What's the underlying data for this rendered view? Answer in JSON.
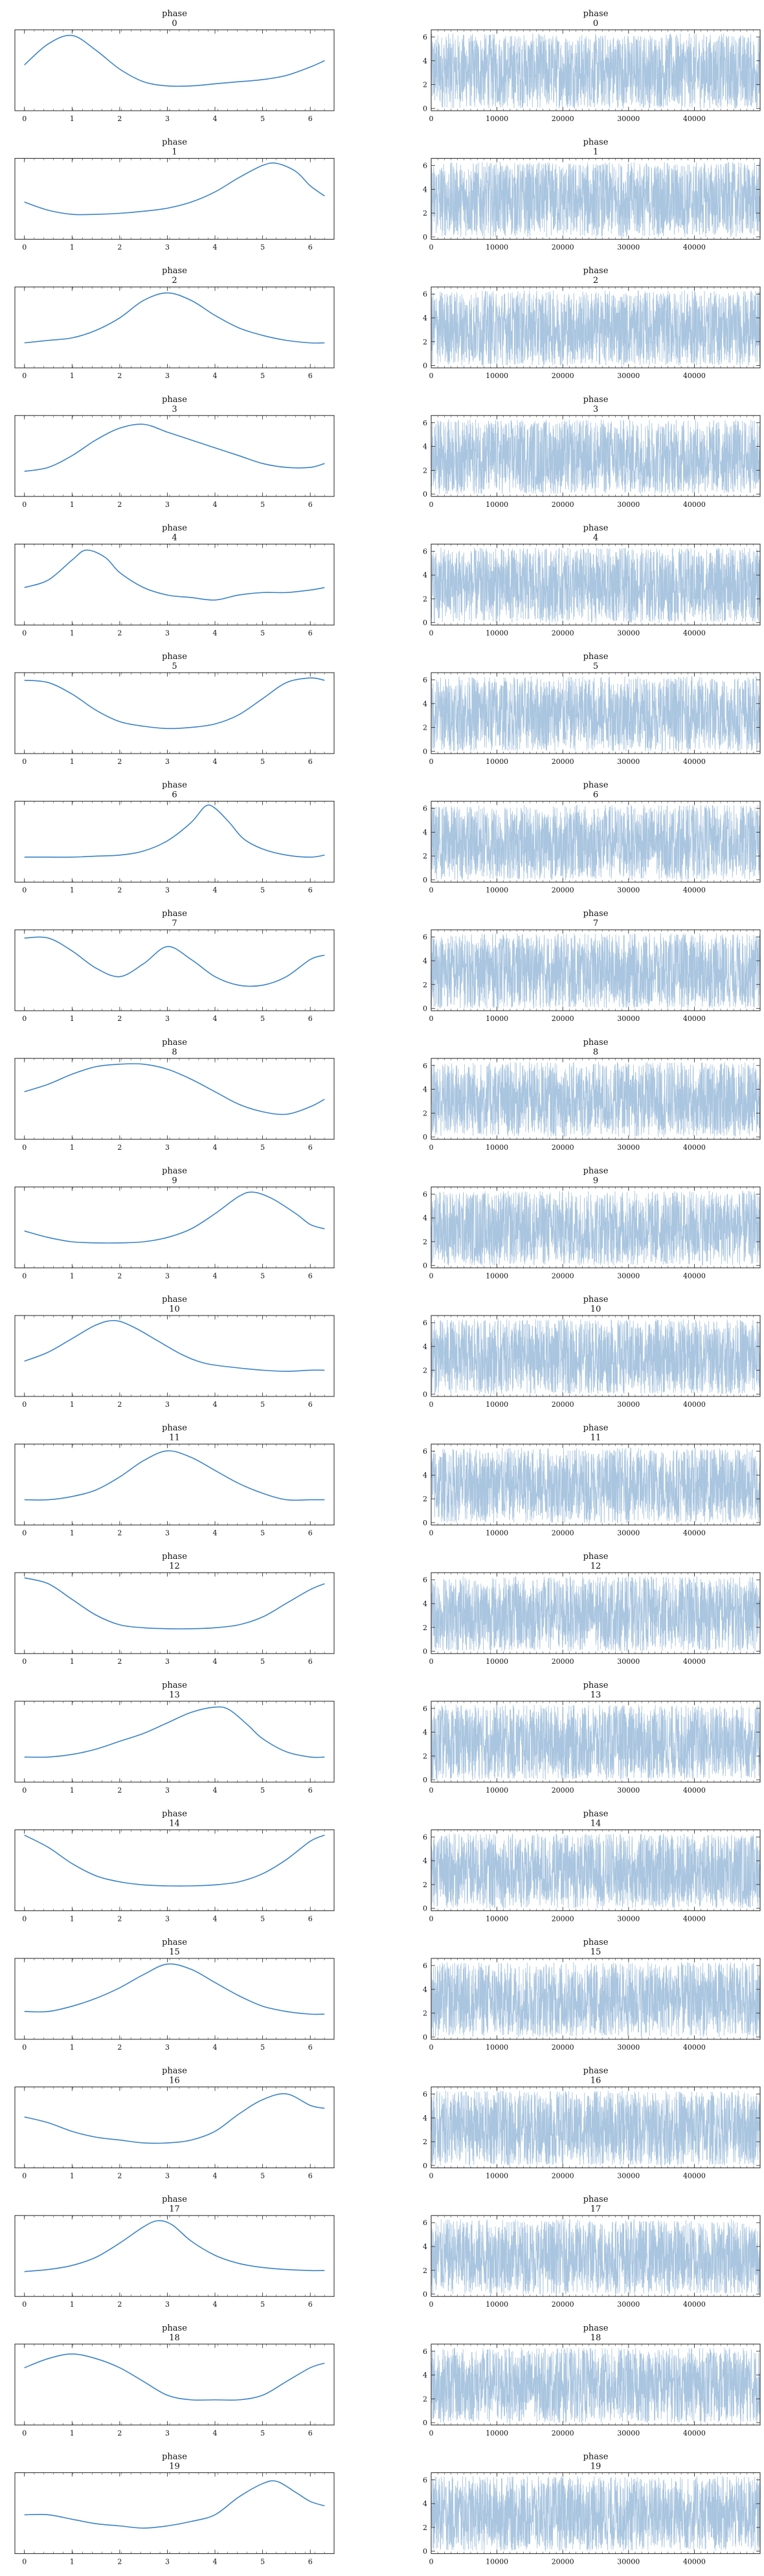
{
  "chart_data": {
    "type": "line",
    "variable": "phase",
    "colors": {
      "kde": "#3b83c7",
      "trace": "#a9c5df"
    },
    "kde_xlim": [
      -0.2,
      6.5
    ],
    "kde_xticks": [
      0,
      1,
      2,
      3,
      4,
      5,
      6
    ],
    "trace_xlim": [
      0,
      50000
    ],
    "trace_xticks": [
      0,
      10000,
      20000,
      30000,
      40000
    ],
    "trace_ylim": [
      -0.2,
      6.6
    ],
    "trace_yticks": [
      0,
      2,
      4,
      6
    ],
    "kde_curves": [
      {
        "index": "0",
        "points": [
          [
            0,
            0.2
          ],
          [
            0.5,
            0.3
          ],
          [
            1.0,
            0.34
          ],
          [
            1.5,
            0.27
          ],
          [
            2.0,
            0.18
          ],
          [
            2.5,
            0.12
          ],
          [
            3.0,
            0.1
          ],
          [
            3.5,
            0.1
          ],
          [
            4.0,
            0.11
          ],
          [
            4.5,
            0.12
          ],
          [
            5.0,
            0.13
          ],
          [
            5.5,
            0.15
          ],
          [
            6.0,
            0.19
          ],
          [
            6.3,
            0.22
          ]
        ]
      },
      {
        "index": "1",
        "points": [
          [
            0,
            0.12
          ],
          [
            0.5,
            0.08
          ],
          [
            1.0,
            0.06
          ],
          [
            1.5,
            0.06
          ],
          [
            2.0,
            0.065
          ],
          [
            2.5,
            0.075
          ],
          [
            3.0,
            0.09
          ],
          [
            3.5,
            0.12
          ],
          [
            4.0,
            0.17
          ],
          [
            4.5,
            0.24
          ],
          [
            5.0,
            0.3
          ],
          [
            5.3,
            0.31
          ],
          [
            5.7,
            0.27
          ],
          [
            6.0,
            0.2
          ],
          [
            6.3,
            0.15
          ]
        ]
      },
      {
        "index": "2",
        "points": [
          [
            0,
            0.1
          ],
          [
            0.5,
            0.11
          ],
          [
            1.0,
            0.12
          ],
          [
            1.5,
            0.15
          ],
          [
            2.0,
            0.2
          ],
          [
            2.5,
            0.27
          ],
          [
            3.0,
            0.3
          ],
          [
            3.5,
            0.27
          ],
          [
            4.0,
            0.21
          ],
          [
            4.5,
            0.16
          ],
          [
            5.0,
            0.13
          ],
          [
            5.5,
            0.11
          ],
          [
            6.0,
            0.1
          ],
          [
            6.3,
            0.1
          ]
        ]
      },
      {
        "index": "3",
        "points": [
          [
            0,
            0.16
          ],
          [
            0.5,
            0.17
          ],
          [
            1.0,
            0.2
          ],
          [
            1.5,
            0.24
          ],
          [
            2.0,
            0.27
          ],
          [
            2.5,
            0.28
          ],
          [
            3.0,
            0.26
          ],
          [
            3.5,
            0.24
          ],
          [
            4.0,
            0.22
          ],
          [
            4.5,
            0.2
          ],
          [
            5.0,
            0.18
          ],
          [
            5.5,
            0.17
          ],
          [
            6.0,
            0.17
          ],
          [
            6.3,
            0.18
          ]
        ]
      },
      {
        "index": "4",
        "points": [
          [
            0,
            0.15
          ],
          [
            0.5,
            0.18
          ],
          [
            1.0,
            0.26
          ],
          [
            1.3,
            0.3
          ],
          [
            1.7,
            0.27
          ],
          [
            2.0,
            0.21
          ],
          [
            2.5,
            0.15
          ],
          [
            3.0,
            0.12
          ],
          [
            3.5,
            0.11
          ],
          [
            4.0,
            0.1
          ],
          [
            4.5,
            0.12
          ],
          [
            5.0,
            0.13
          ],
          [
            5.5,
            0.13
          ],
          [
            6.0,
            0.14
          ],
          [
            6.3,
            0.15
          ]
        ]
      },
      {
        "index": "5",
        "points": [
          [
            0,
            0.28
          ],
          [
            0.5,
            0.27
          ],
          [
            1.0,
            0.22
          ],
          [
            1.5,
            0.15
          ],
          [
            2.0,
            0.1
          ],
          [
            2.5,
            0.08
          ],
          [
            3.0,
            0.07
          ],
          [
            3.5,
            0.075
          ],
          [
            4.0,
            0.09
          ],
          [
            4.5,
            0.13
          ],
          [
            5.0,
            0.2
          ],
          [
            5.5,
            0.27
          ],
          [
            6.0,
            0.29
          ],
          [
            6.3,
            0.28
          ]
        ]
      },
      {
        "index": "6",
        "points": [
          [
            0,
            0.05
          ],
          [
            0.5,
            0.05
          ],
          [
            1.0,
            0.05
          ],
          [
            1.5,
            0.055
          ],
          [
            2.0,
            0.06
          ],
          [
            2.5,
            0.08
          ],
          [
            3.0,
            0.13
          ],
          [
            3.5,
            0.22
          ],
          [
            3.8,
            0.3
          ],
          [
            4.0,
            0.29
          ],
          [
            4.3,
            0.22
          ],
          [
            4.6,
            0.14
          ],
          [
            5.0,
            0.09
          ],
          [
            5.5,
            0.06
          ],
          [
            6.0,
            0.05
          ],
          [
            6.3,
            0.06
          ]
        ]
      },
      {
        "index": "7",
        "points": [
          [
            0,
            0.24
          ],
          [
            0.5,
            0.24
          ],
          [
            1.0,
            0.21
          ],
          [
            1.5,
            0.17
          ],
          [
            2.0,
            0.15
          ],
          [
            2.5,
            0.18
          ],
          [
            3.0,
            0.22
          ],
          [
            3.5,
            0.19
          ],
          [
            4.0,
            0.15
          ],
          [
            4.5,
            0.13
          ],
          [
            5.0,
            0.13
          ],
          [
            5.5,
            0.15
          ],
          [
            6.0,
            0.19
          ],
          [
            6.3,
            0.2
          ]
        ]
      },
      {
        "index": "8",
        "points": [
          [
            0,
            0.18
          ],
          [
            0.5,
            0.21
          ],
          [
            1.0,
            0.25
          ],
          [
            1.5,
            0.28
          ],
          [
            2.0,
            0.29
          ],
          [
            2.5,
            0.29
          ],
          [
            3.0,
            0.27
          ],
          [
            3.5,
            0.23
          ],
          [
            4.0,
            0.18
          ],
          [
            4.5,
            0.13
          ],
          [
            5.0,
            0.1
          ],
          [
            5.5,
            0.09
          ],
          [
            6.0,
            0.12
          ],
          [
            6.3,
            0.15
          ]
        ]
      },
      {
        "index": "9",
        "points": [
          [
            0,
            0.12
          ],
          [
            0.5,
            0.09
          ],
          [
            1.0,
            0.07
          ],
          [
            1.5,
            0.065
          ],
          [
            2.0,
            0.065
          ],
          [
            2.5,
            0.07
          ],
          [
            3.0,
            0.09
          ],
          [
            3.5,
            0.13
          ],
          [
            4.0,
            0.2
          ],
          [
            4.5,
            0.28
          ],
          [
            4.8,
            0.3
          ],
          [
            5.2,
            0.27
          ],
          [
            5.7,
            0.2
          ],
          [
            6.0,
            0.15
          ],
          [
            6.3,
            0.13
          ]
        ]
      },
      {
        "index": "10",
        "points": [
          [
            0,
            0.1
          ],
          [
            0.5,
            0.14
          ],
          [
            1.0,
            0.2
          ],
          [
            1.5,
            0.26
          ],
          [
            1.9,
            0.28
          ],
          [
            2.3,
            0.25
          ],
          [
            2.8,
            0.19
          ],
          [
            3.3,
            0.13
          ],
          [
            3.8,
            0.09
          ],
          [
            4.5,
            0.07
          ],
          [
            5.0,
            0.06
          ],
          [
            5.5,
            0.055
          ],
          [
            6.0,
            0.06
          ],
          [
            6.3,
            0.06
          ]
        ]
      },
      {
        "index": "11",
        "points": [
          [
            0,
            0.11
          ],
          [
            0.5,
            0.11
          ],
          [
            1.0,
            0.12
          ],
          [
            1.5,
            0.14
          ],
          [
            2.0,
            0.18
          ],
          [
            2.5,
            0.23
          ],
          [
            3.0,
            0.26
          ],
          [
            3.5,
            0.24
          ],
          [
            4.0,
            0.2
          ],
          [
            4.5,
            0.16
          ],
          [
            5.0,
            0.13
          ],
          [
            5.5,
            0.11
          ],
          [
            6.0,
            0.11
          ],
          [
            6.3,
            0.11
          ]
        ]
      },
      {
        "index": "12",
        "points": [
          [
            0,
            0.33
          ],
          [
            0.5,
            0.3
          ],
          [
            1.0,
            0.22
          ],
          [
            1.5,
            0.14
          ],
          [
            2.0,
            0.09
          ],
          [
            2.5,
            0.075
          ],
          [
            3.0,
            0.07
          ],
          [
            3.5,
            0.07
          ],
          [
            4.0,
            0.075
          ],
          [
            4.5,
            0.09
          ],
          [
            5.0,
            0.13
          ],
          [
            5.5,
            0.2
          ],
          [
            6.0,
            0.27
          ],
          [
            6.3,
            0.3
          ]
        ]
      },
      {
        "index": "13",
        "points": [
          [
            0,
            0.09
          ],
          [
            0.5,
            0.09
          ],
          [
            1.0,
            0.1
          ],
          [
            1.5,
            0.12
          ],
          [
            2.0,
            0.15
          ],
          [
            2.5,
            0.18
          ],
          [
            3.0,
            0.22
          ],
          [
            3.5,
            0.26
          ],
          [
            4.0,
            0.28
          ],
          [
            4.3,
            0.27
          ],
          [
            4.7,
            0.21
          ],
          [
            5.0,
            0.16
          ],
          [
            5.5,
            0.11
          ],
          [
            6.0,
            0.09
          ],
          [
            6.3,
            0.09
          ]
        ]
      },
      {
        "index": "14",
        "points": [
          [
            0,
            0.33
          ],
          [
            0.5,
            0.27
          ],
          [
            1.0,
            0.19
          ],
          [
            1.5,
            0.13
          ],
          [
            2.0,
            0.1
          ],
          [
            2.5,
            0.085
          ],
          [
            3.0,
            0.08
          ],
          [
            3.5,
            0.08
          ],
          [
            4.0,
            0.085
          ],
          [
            4.5,
            0.1
          ],
          [
            5.0,
            0.14
          ],
          [
            5.5,
            0.21
          ],
          [
            6.0,
            0.3
          ],
          [
            6.3,
            0.33
          ]
        ]
      },
      {
        "index": "15",
        "points": [
          [
            0,
            0.09
          ],
          [
            0.5,
            0.09
          ],
          [
            1.0,
            0.11
          ],
          [
            1.5,
            0.14
          ],
          [
            2.0,
            0.18
          ],
          [
            2.5,
            0.23
          ],
          [
            3.0,
            0.27
          ],
          [
            3.5,
            0.25
          ],
          [
            4.0,
            0.2
          ],
          [
            4.5,
            0.15
          ],
          [
            5.0,
            0.11
          ],
          [
            5.5,
            0.09
          ],
          [
            6.0,
            0.08
          ],
          [
            6.3,
            0.08
          ]
        ]
      },
      {
        "index": "16",
        "points": [
          [
            0,
            0.22
          ],
          [
            0.5,
            0.2
          ],
          [
            1.0,
            0.17
          ],
          [
            1.5,
            0.15
          ],
          [
            2.0,
            0.14
          ],
          [
            2.5,
            0.13
          ],
          [
            3.0,
            0.13
          ],
          [
            3.5,
            0.14
          ],
          [
            4.0,
            0.17
          ],
          [
            4.5,
            0.23
          ],
          [
            5.0,
            0.28
          ],
          [
            5.5,
            0.3
          ],
          [
            6.0,
            0.26
          ],
          [
            6.3,
            0.25
          ]
        ]
      },
      {
        "index": "17",
        "points": [
          [
            0,
            0.07
          ],
          [
            0.5,
            0.08
          ],
          [
            1.0,
            0.1
          ],
          [
            1.5,
            0.14
          ],
          [
            2.0,
            0.21
          ],
          [
            2.5,
            0.29
          ],
          [
            2.8,
            0.32
          ],
          [
            3.1,
            0.3
          ],
          [
            3.5,
            0.22
          ],
          [
            4.0,
            0.15
          ],
          [
            4.5,
            0.11
          ],
          [
            5.0,
            0.09
          ],
          [
            5.5,
            0.08
          ],
          [
            6.0,
            0.075
          ],
          [
            6.3,
            0.075
          ]
        ]
      },
      {
        "index": "18",
        "points": [
          [
            0,
            0.24
          ],
          [
            0.5,
            0.26
          ],
          [
            1.0,
            0.27
          ],
          [
            1.5,
            0.26
          ],
          [
            2.0,
            0.24
          ],
          [
            2.5,
            0.21
          ],
          [
            3.0,
            0.18
          ],
          [
            3.5,
            0.17
          ],
          [
            4.0,
            0.17
          ],
          [
            4.5,
            0.17
          ],
          [
            5.0,
            0.18
          ],
          [
            5.5,
            0.21
          ],
          [
            6.0,
            0.24
          ],
          [
            6.3,
            0.25
          ]
        ]
      },
      {
        "index": "19",
        "points": [
          [
            0,
            0.17
          ],
          [
            0.5,
            0.17
          ],
          [
            1.0,
            0.16
          ],
          [
            1.5,
            0.15
          ],
          [
            2.0,
            0.145
          ],
          [
            2.5,
            0.14
          ],
          [
            3.0,
            0.145
          ],
          [
            3.5,
            0.155
          ],
          [
            4.0,
            0.17
          ],
          [
            4.5,
            0.21
          ],
          [
            5.0,
            0.24
          ],
          [
            5.3,
            0.245
          ],
          [
            5.7,
            0.22
          ],
          [
            6.0,
            0.2
          ],
          [
            6.3,
            0.19
          ]
        ]
      }
    ]
  }
}
